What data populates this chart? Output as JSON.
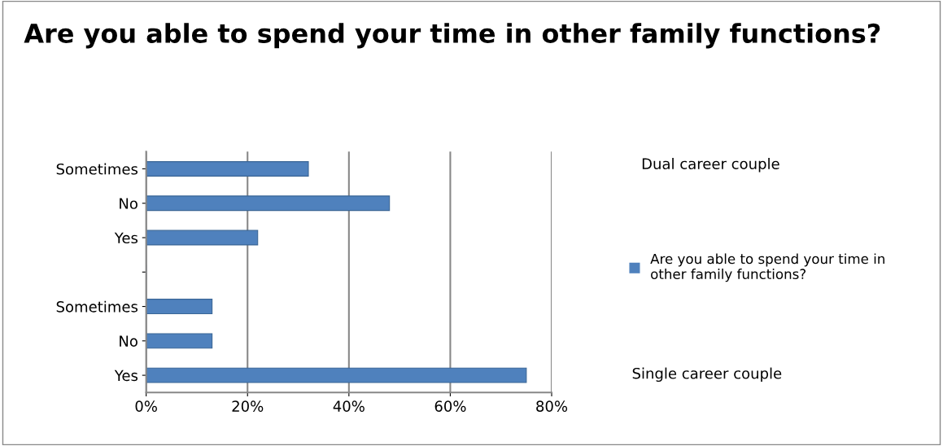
{
  "chart_data": {
    "type": "bar",
    "orientation": "horizontal",
    "title": "Are you able to spend your time in other family functions?",
    "categories": [
      "Sometimes",
      "No",
      "Yes",
      null,
      "Sometimes",
      "No",
      "Yes"
    ],
    "series": [
      {
        "name": "Are you able to spend your time in other family functions?",
        "color": "#4f81bd",
        "values": [
          32,
          48,
          22,
          null,
          13,
          13,
          75
        ]
      }
    ],
    "xlim": [
      0,
      80
    ],
    "xticks": [
      {
        "value": 0,
        "label": "0%"
      },
      {
        "value": 20,
        "label": "20%"
      },
      {
        "value": 40,
        "label": "40%"
      },
      {
        "value": 60,
        "label": "60%"
      },
      {
        "value": 80,
        "label": "80%"
      }
    ],
    "grid": "x",
    "legend": "right",
    "annotations": [
      "Dual career couple",
      "Single career couple"
    ]
  }
}
